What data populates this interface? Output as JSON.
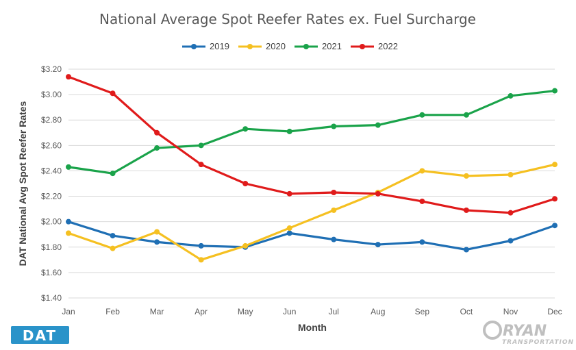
{
  "chart_data": {
    "type": "line",
    "title": "National Average Spot Reefer Rates ex. Fuel Surcharge",
    "xlabel": "Month",
    "ylabel": "DAT National Avg Spot Reefer Rates",
    "categories": [
      "Jan",
      "Feb",
      "Mar",
      "Apr",
      "May",
      "Jun",
      "Jul",
      "Aug",
      "Sep",
      "Oct",
      "Nov",
      "Dec"
    ],
    "ylim": [
      1.4,
      3.2
    ],
    "yticks": [
      1.4,
      1.6,
      1.8,
      2.0,
      2.2,
      2.4,
      2.6,
      2.8,
      3.0,
      3.2
    ],
    "ytick_labels": [
      "$1.40",
      "$1.60",
      "$1.80",
      "$2.00",
      "$2.20",
      "$2.40",
      "$2.60",
      "$2.80",
      "$3.00",
      "$3.20"
    ],
    "grid": "horizontal",
    "legend_position": "top",
    "series": [
      {
        "name": "2019",
        "color": "#1f6fb4",
        "values": [
          2.0,
          1.89,
          1.84,
          1.81,
          1.8,
          1.91,
          1.86,
          1.82,
          1.84,
          1.78,
          1.85,
          1.97
        ]
      },
      {
        "name": "2020",
        "color": "#f5c021",
        "values": [
          1.91,
          1.79,
          1.92,
          1.7,
          1.81,
          1.95,
          2.09,
          2.23,
          2.4,
          2.36,
          2.37,
          2.45
        ]
      },
      {
        "name": "2021",
        "color": "#1aa34a",
        "values": [
          2.43,
          2.38,
          2.58,
          2.6,
          2.73,
          2.71,
          2.75,
          2.76,
          2.84,
          2.84,
          2.99,
          3.03
        ]
      },
      {
        "name": "2022",
        "color": "#e01b1b",
        "values": [
          3.14,
          3.01,
          2.7,
          2.45,
          2.3,
          2.22,
          2.23,
          2.22,
          2.16,
          2.09,
          2.07,
          2.18
        ]
      }
    ]
  },
  "logos": {
    "dat": "DAT",
    "ryan": "RYAN",
    "ryan_sub": "TRANSPORTATION"
  }
}
